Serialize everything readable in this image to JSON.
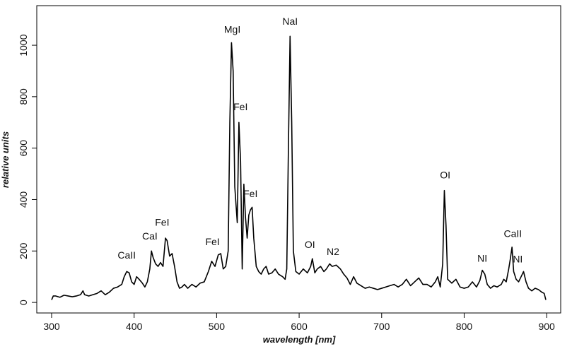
{
  "chart_data": {
    "type": "line",
    "x_label": "wavelength [nm]",
    "y_label": "relative units",
    "xlim": [
      282,
      917
    ],
    "ylim": [
      -41,
      1154
    ],
    "xticks": [
      300,
      400,
      500,
      600,
      700,
      800,
      900
    ],
    "yticks": [
      0,
      200,
      400,
      600,
      800,
      1000
    ],
    "series": [
      {
        "color": "#000000",
        "x": [
          300,
          302,
          305,
          310,
          315,
          320,
          325,
          330,
          335,
          338,
          340,
          345,
          350,
          355,
          360,
          365,
          370,
          375,
          380,
          385,
          388,
          391,
          394,
          397,
          400,
          403,
          406,
          410,
          413,
          416,
          419,
          421,
          423,
          426,
          429,
          432,
          435,
          438,
          440,
          443,
          446,
          449,
          452,
          455,
          458,
          461,
          465,
          470,
          475,
          480,
          485,
          490,
          494,
          498,
          502,
          505,
          508,
          511,
          514,
          516,
          518,
          520,
          522,
          525,
          527,
          529,
          531,
          533,
          535,
          537,
          539,
          541,
          543,
          545,
          548,
          551,
          554,
          557,
          560,
          563,
          567,
          571,
          575,
          580,
          583,
          585,
          587,
          589,
          591,
          593,
          596,
          600,
          605,
          610,
          614,
          616,
          619,
          622,
          626,
          630,
          633,
          637,
          640,
          645,
          650,
          654,
          658,
          662,
          666,
          670,
          675,
          680,
          685,
          690,
          695,
          700,
          705,
          710,
          715,
          720,
          725,
          730,
          735,
          740,
          745,
          750,
          755,
          760,
          765,
          768,
          771,
          774,
          776,
          778,
          780,
          785,
          790,
          795,
          800,
          805,
          810,
          815,
          819,
          822,
          825,
          828,
          832,
          836,
          840,
          845,
          848,
          851,
          854,
          856,
          858,
          860,
          863,
          866,
          869,
          872,
          875,
          878,
          882,
          886,
          890,
          894,
          897,
          899
        ],
        "values": [
          10,
          25,
          25,
          20,
          28,
          25,
          22,
          25,
          30,
          45,
          30,
          25,
          30,
          35,
          45,
          30,
          40,
          55,
          60,
          70,
          100,
          120,
          115,
          80,
          70,
          100,
          90,
          75,
          60,
          80,
          130,
          200,
          175,
          150,
          140,
          155,
          140,
          250,
          240,
          180,
          190,
          140,
          80,
          55,
          60,
          70,
          55,
          70,
          60,
          75,
          80,
          120,
          160,
          140,
          185,
          190,
          130,
          140,
          200,
          700,
          1010,
          900,
          450,
          310,
          700,
          550,
          130,
          460,
          330,
          250,
          340,
          360,
          370,
          250,
          140,
          120,
          110,
          130,
          140,
          110,
          115,
          130,
          110,
          100,
          90,
          130,
          600,
          1035,
          700,
          200,
          120,
          110,
          130,
          115,
          140,
          170,
          115,
          130,
          140,
          120,
          130,
          150,
          140,
          145,
          130,
          110,
          95,
          70,
          100,
          75,
          65,
          55,
          60,
          55,
          50,
          55,
          60,
          65,
          70,
          60,
          70,
          90,
          65,
          80,
          95,
          70,
          70,
          60,
          80,
          100,
          60,
          150,
          435,
          300,
          90,
          75,
          90,
          60,
          55,
          60,
          80,
          60,
          85,
          125,
          110,
          70,
          55,
          65,
          60,
          70,
          90,
          80,
          130,
          170,
          215,
          120,
          90,
          80,
          100,
          120,
          80,
          55,
          45,
          55,
          50,
          40,
          35,
          10
        ]
      }
    ],
    "annotations": [
      {
        "text": "CaII",
        "x": 391,
        "y": 181
      },
      {
        "text": "CaI",
        "x": 419,
        "y": 255
      },
      {
        "text": "FeI",
        "x": 434,
        "y": 308
      },
      {
        "text": "FeI",
        "x": 495,
        "y": 233
      },
      {
        "text": "MgI",
        "x": 519,
        "y": 1058
      },
      {
        "text": "FeI",
        "x": 529,
        "y": 758
      },
      {
        "text": "FeI",
        "x": 541,
        "y": 420
      },
      {
        "text": "NaI",
        "x": 589,
        "y": 1090
      },
      {
        "text": "OI",
        "x": 613,
        "y": 222
      },
      {
        "text": "N2",
        "x": 641,
        "y": 195
      },
      {
        "text": "OI",
        "x": 777,
        "y": 492
      },
      {
        "text": "NI",
        "x": 822,
        "y": 168
      },
      {
        "text": "CaII",
        "x": 859,
        "y": 264
      },
      {
        "text": "NI",
        "x": 865,
        "y": 165
      }
    ]
  }
}
